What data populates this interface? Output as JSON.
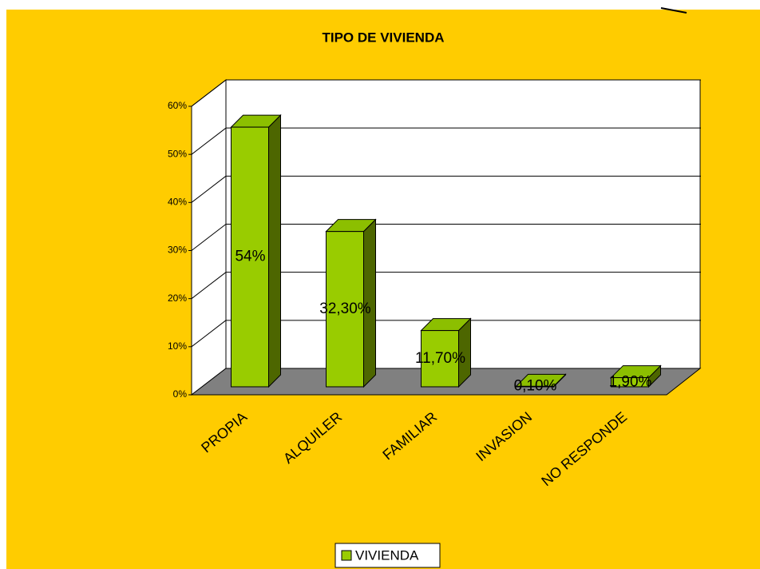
{
  "chart_data": {
    "type": "bar3d",
    "title": "TIPO DE VIVIENDA",
    "categories": [
      "PROPIA",
      "ALQUILER",
      "FAMILIAR",
      "INVASION",
      "NO RESPONDE"
    ],
    "series": [
      {
        "name": "VIVIENDA",
        "color": "#99cc00",
        "values": [
          54,
          32.3,
          11.7,
          0.1,
          1.9
        ],
        "value_labels": [
          "54%",
          "32,30%",
          "11,70%",
          "0,10%",
          "1,90%"
        ]
      }
    ],
    "ylim": [
      0,
      60
    ],
    "yticks": [
      {
        "value": 0,
        "label": "0%"
      },
      {
        "value": 10,
        "label": "10%"
      },
      {
        "value": 20,
        "label": "20%"
      },
      {
        "value": 30,
        "label": "30%"
      },
      {
        "value": 40,
        "label": "40%"
      },
      {
        "value": 50,
        "label": "50%"
      },
      {
        "value": 60,
        "label": "60%"
      }
    ],
    "grid": true,
    "legend": "bottom"
  }
}
